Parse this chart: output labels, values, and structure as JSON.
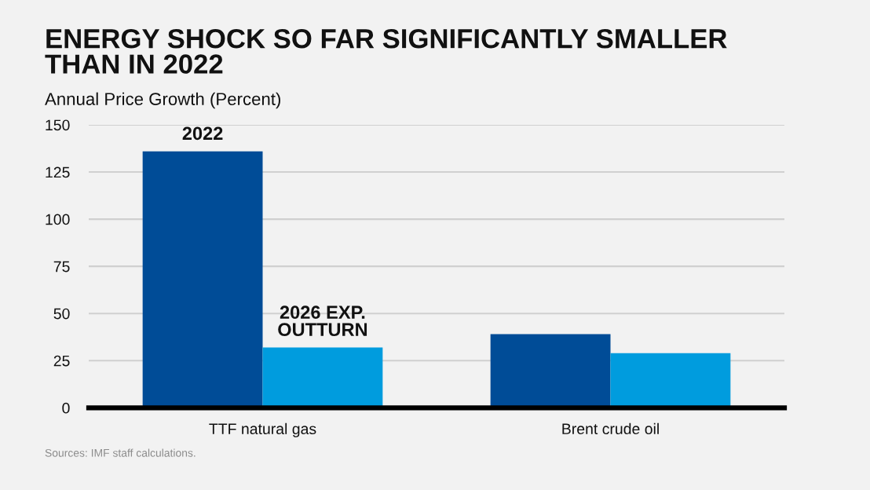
{
  "chart_data": {
    "type": "bar",
    "title": "ENERGY SHOCK SO FAR SIGNIFICANTLY SMALLER\nTHAN IN 2022",
    "subtitle": "Annual Price Growth (Percent)",
    "categories": [
      "TTF natural gas",
      "Brent crude oil"
    ],
    "series": [
      {
        "name": "2022",
        "color": "#004c97",
        "values": [
          136,
          39
        ]
      },
      {
        "name": "2026 EXP.\nOUTTURN",
        "color": "#009cde",
        "values": [
          32,
          29
        ]
      }
    ],
    "ylim": [
      0,
      150
    ],
    "yticks": [
      0,
      25,
      50,
      75,
      100,
      125,
      150
    ],
    "grid": "y",
    "annotations": [
      "Sources: IMF staff calculations."
    ]
  }
}
